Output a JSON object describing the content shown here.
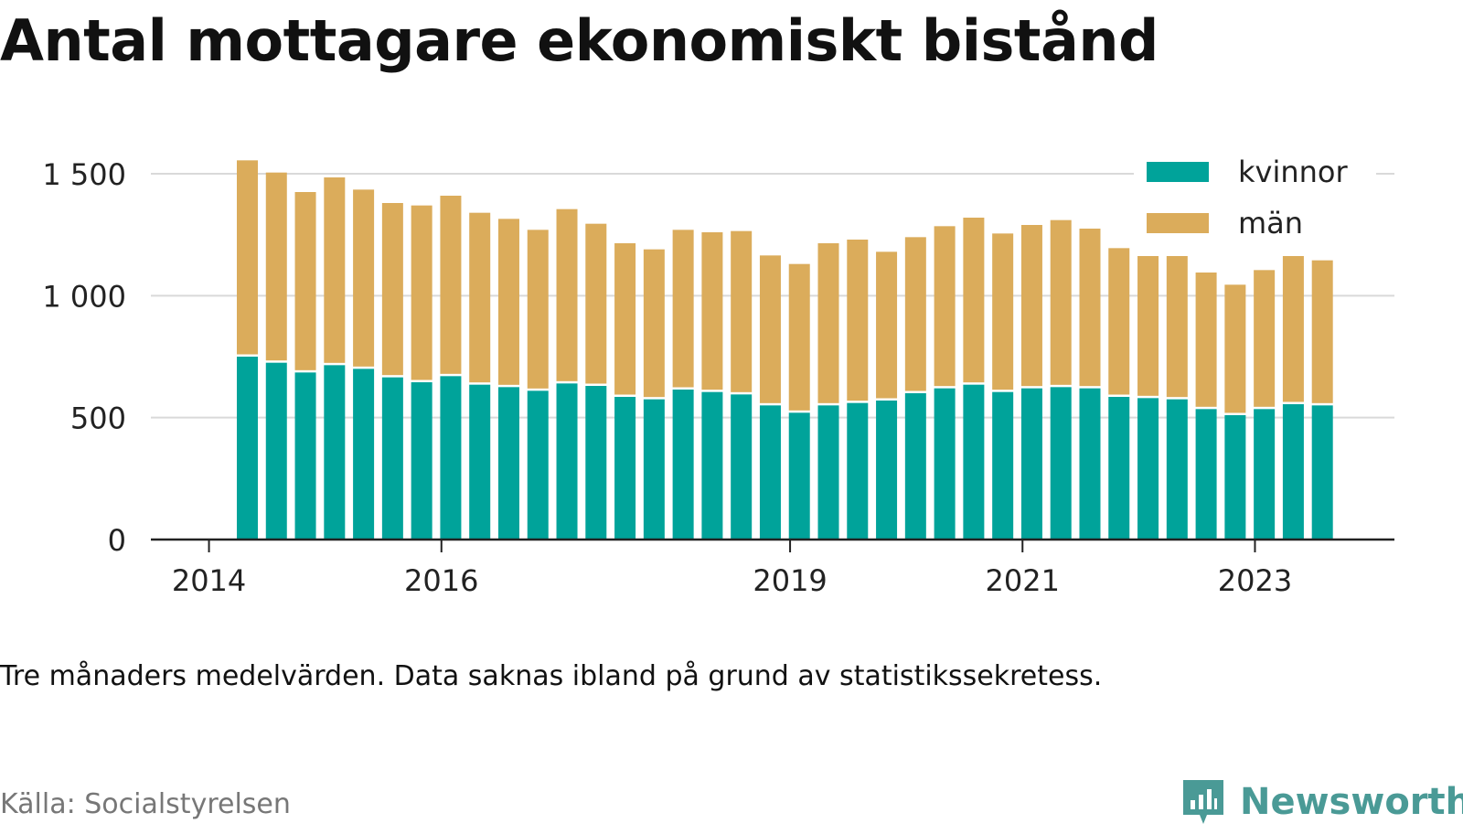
{
  "title": "Antal mottagare ekonomiskt bistånd",
  "note": "Tre månaders medelvärden. Data saknas ibland på grund av statistikssekretess.",
  "source": "Källa: Socialstyrelsen",
  "brand": {
    "name": "Newsworthy",
    "logo_icon": "newsworthy-logo-icon",
    "color": "#4a9a96"
  },
  "chart_data": {
    "type": "bar",
    "stacked": true,
    "x_axis": {
      "ticks": [
        {
          "label": "2014",
          "value": 2014.0
        },
        {
          "label": "2016",
          "value": 2016.0
        },
        {
          "label": "2019",
          "value": 2019.0
        },
        {
          "label": "2021",
          "value": 2021.0
        },
        {
          "label": "2023",
          "value": 2023.0
        }
      ],
      "range": [
        2013.5,
        2024.2
      ]
    },
    "y_axis": {
      "ticks": [
        {
          "label": "0",
          "value": 0
        },
        {
          "label": "500",
          "value": 500
        },
        {
          "label": "1 000",
          "value": 1000
        },
        {
          "label": "1 500",
          "value": 1500
        }
      ],
      "range": [
        0,
        1650
      ],
      "grid": true
    },
    "legend": {
      "position": "top-right"
    },
    "x": [
      2014.33,
      2014.58,
      2014.83,
      2015.08,
      2015.33,
      2015.58,
      2015.83,
      2016.08,
      2016.33,
      2016.58,
      2016.83,
      2017.08,
      2017.33,
      2017.58,
      2017.83,
      2018.08,
      2018.33,
      2018.58,
      2018.83,
      2019.08,
      2019.33,
      2019.58,
      2019.83,
      2020.08,
      2020.33,
      2020.58,
      2020.83,
      2021.08,
      2021.33,
      2021.58,
      2021.83,
      2022.08,
      2022.33,
      2022.58,
      2022.83,
      2023.08,
      2023.33,
      2023.58
    ],
    "series": [
      {
        "name": "kvinnor",
        "color": "#00a39a",
        "values": [
          750,
          725,
          685,
          715,
          700,
          665,
          645,
          670,
          635,
          625,
          610,
          640,
          630,
          585,
          575,
          615,
          605,
          595,
          550,
          520,
          550,
          560,
          570,
          600,
          620,
          635,
          605,
          620,
          625,
          620,
          585,
          580,
          575,
          535,
          510,
          535,
          555,
          550
        ]
      },
      {
        "name": "män",
        "color": "#dbac5b",
        "values": [
          805,
          780,
          740,
          770,
          735,
          715,
          725,
          740,
          705,
          690,
          660,
          715,
          665,
          630,
          615,
          655,
          655,
          670,
          615,
          610,
          665,
          670,
          610,
          640,
          665,
          685,
          650,
          670,
          685,
          655,
          610,
          585,
          600,
          560,
          535,
          570,
          610,
          595
        ]
      }
    ]
  }
}
